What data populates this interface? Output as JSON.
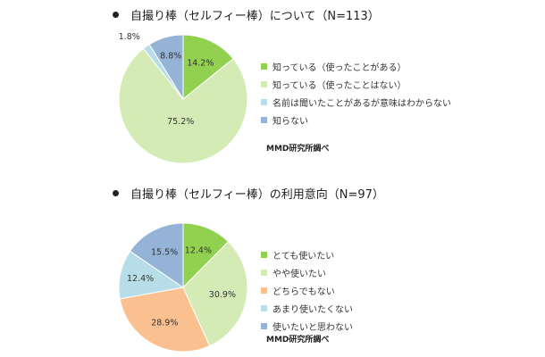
{
  "chart_data": [
    {
      "type": "pie",
      "title": "自撮り棒（セルフィー棒）について（N=113）",
      "slices": [
        {
          "label": "知っている（使ったことがある）",
          "value": 14.2,
          "value_label": "14.2%",
          "color": "#92d050"
        },
        {
          "label": "知っている（使ったことはない）",
          "value": 75.2,
          "value_label": "75.2%",
          "color": "#d5ebb5"
        },
        {
          "label": "名前は聞いたことがあるが意味はわからない",
          "value": 1.8,
          "value_label": "1.8%",
          "color": "#b7dee8"
        },
        {
          "label": "知らない",
          "value": 8.8,
          "value_label": "8.8%",
          "color": "#95b3d7"
        }
      ],
      "start_angle_deg": 0,
      "direction": "clockwise",
      "legend_position": "right",
      "source": "MMD研究所調べ"
    },
    {
      "type": "pie",
      "title": "自撮り棒（セルフィー棒）の利用意向（N=97）",
      "slices": [
        {
          "label": "とても使いたい",
          "value": 12.4,
          "value_label": "12.4%",
          "color": "#92d050"
        },
        {
          "label": "やや使いたい",
          "value": 30.9,
          "value_label": "30.9%",
          "color": "#d5ebb5"
        },
        {
          "label": "どちらでもない",
          "value": 28.9,
          "value_label": "28.9%",
          "color": "#fac090"
        },
        {
          "label": "あまり使いたくない",
          "value": 12.4,
          "value_label": "12.4%",
          "color": "#b7dee8"
        },
        {
          "label": "使いたいと思わない",
          "value": 15.5,
          "value_label": "15.5%",
          "color": "#95b3d7"
        }
      ],
      "start_angle_deg": 0,
      "direction": "clockwise",
      "legend_position": "right",
      "source": "MMD研究所調べ"
    }
  ]
}
